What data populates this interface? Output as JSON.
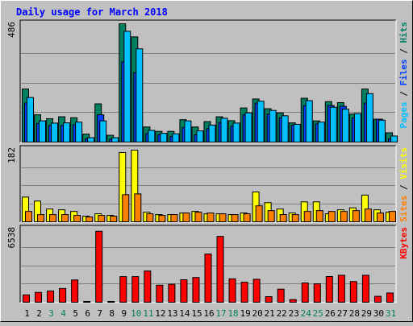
{
  "chart_data": {
    "type": "bar",
    "title": "Daily usage for March 2018",
    "categories": [
      "1",
      "2",
      "3",
      "4",
      "5",
      "6",
      "7",
      "8",
      "9",
      "10",
      "11",
      "12",
      "13",
      "14",
      "15",
      "16",
      "17",
      "18",
      "19",
      "20",
      "21",
      "22",
      "23",
      "24",
      "25",
      "26",
      "27",
      "28",
      "29",
      "30",
      "31"
    ],
    "weekend_days": [
      "3",
      "4",
      "10",
      "11",
      "17",
      "18",
      "24",
      "25",
      "31"
    ],
    "panels": [
      {
        "ymax_label": "486",
        "ymax": 486,
        "right_label": [
          {
            "text": "Pages",
            "color": "#00c0ff"
          },
          {
            "text": " / ",
            "color": "#000000"
          },
          {
            "text": "Files",
            "color": "#0040ff"
          },
          {
            "text": " / ",
            "color": "#000000"
          },
          {
            "text": "Hits",
            "color": "#008060"
          }
        ],
        "series": [
          {
            "name": "Hits",
            "color": "#008060",
            "values": [
              218,
              112,
              96,
              104,
              100,
              33,
              157,
              28,
              486,
              432,
              62,
              44,
              44,
              92,
              62,
              84,
              104,
              88,
              140,
              177,
              137,
              120,
              79,
              180,
              87,
              166,
              162,
              115,
              218,
              94,
              38
            ]
          },
          {
            "name": "Files",
            "color": "#0040ff",
            "values": [
              160,
              77,
              68,
              68,
              72,
              14,
              112,
              12,
              330,
              285,
              35,
              30,
              23,
              60,
              30,
              55,
              80,
              65,
              112,
              160,
              115,
              99,
              70,
              150,
              75,
              150,
              147,
              99,
              160,
              94,
              14
            ]
          },
          {
            "name": "Pages",
            "color": "#00c0ff",
            "values": [
              183,
              87,
              78,
              79,
              82,
              18,
              87,
              18,
              455,
              383,
              48,
              36,
              34,
              87,
              46,
              70,
              98,
              78,
              120,
              168,
              130,
              108,
              73,
              170,
              82,
              143,
              135,
              117,
              199,
              90,
              25
            ]
          }
        ]
      },
      {
        "ymax_label": "182",
        "ymax": 182,
        "right_label": [
          {
            "text": "Sites",
            "color": "#ff8000"
          },
          {
            "text": " / ",
            "color": "#000000"
          },
          {
            "text": "Visits",
            "color": "#ffff00"
          }
        ],
        "series": [
          {
            "name": "Visits",
            "color": "#ffff00",
            "values": [
              62,
              52,
              32,
              30,
              26,
              14,
              20,
              16,
              174,
              180,
              24,
              18,
              18,
              22,
              26,
              20,
              20,
              18,
              22,
              75,
              48,
              32,
              22,
              50,
              50,
              20,
              30,
              35,
              67,
              30,
              24
            ]
          },
          {
            "name": "Sites",
            "color": "#ff8000",
            "values": [
              26,
              18,
              18,
              18,
              16,
              12,
              16,
              14,
              68,
              70,
              20,
              16,
              18,
              22,
              24,
              22,
              20,
              18,
              20,
              40,
              28,
              18,
              18,
              26,
              28,
              26,
              26,
              28,
              32,
              22,
              26
            ]
          }
        ]
      },
      {
        "ymax_label": "6538",
        "ymax": 6538,
        "right_label": [
          {
            "text": "KBytes",
            "color": "#ff0000"
          }
        ],
        "series": [
          {
            "name": "KBytes",
            "color": "#ff0000",
            "values": [
              660,
              880,
              1010,
              1230,
              1990,
              60,
              6340,
              60,
              2290,
              2290,
              2790,
              1520,
              1610,
              2010,
              2210,
              4310,
              5880,
              2090,
              1790,
              2050,
              500,
              1170,
              240,
              1720,
              1650,
              2300,
              2410,
              1850,
              2410,
              530,
              830
            ]
          }
        ]
      }
    ]
  }
}
